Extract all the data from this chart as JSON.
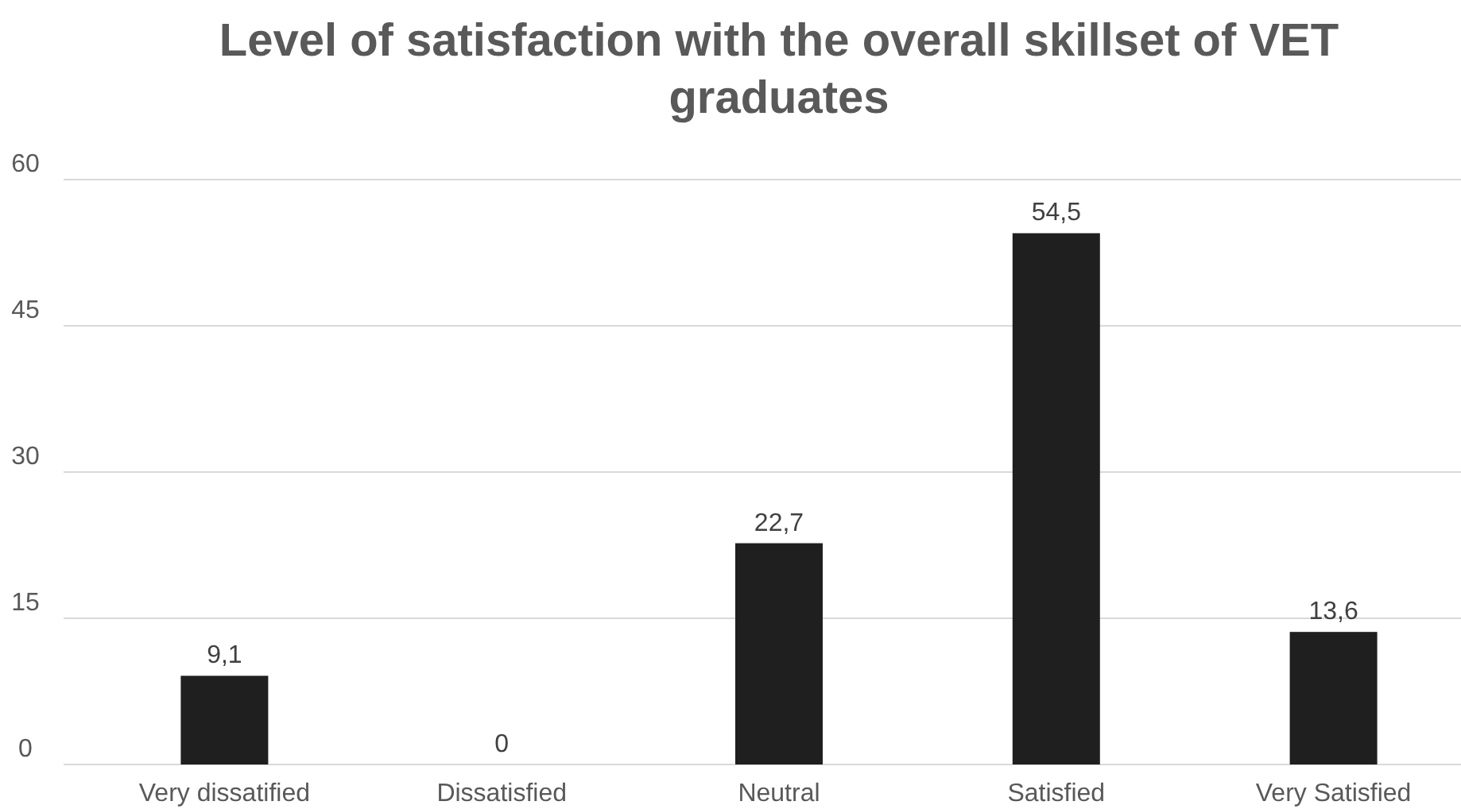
{
  "chart_data": {
    "type": "bar",
    "title": "Level of satisfaction with the overall skillset of VET graduates",
    "categories": [
      "Very dissatified",
      "Dissatisfied",
      "Neutral",
      "Satisfied",
      "Very Satisfied"
    ],
    "values": [
      9.1,
      0,
      22.7,
      54.5,
      13.6
    ],
    "value_labels": [
      "9,1",
      "0",
      "22,7",
      "54,5",
      "13,6"
    ],
    "color": "#1f1f1f",
    "ylim": [
      0,
      60
    ],
    "yticks": [
      0,
      15,
      30,
      45,
      60
    ],
    "grid": "y"
  }
}
